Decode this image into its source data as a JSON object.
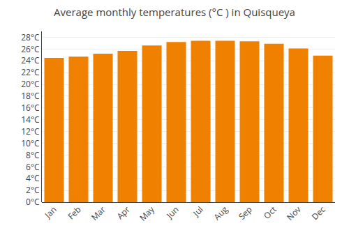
{
  "chart_data": {
    "type": "bar",
    "title": "Average monthly temperatures (°C ) in Quisqueya",
    "categories": [
      "Jan",
      "Feb",
      "Mar",
      "Apr",
      "May",
      "Jun",
      "Jul",
      "Aug",
      "Sep",
      "Oct",
      "Nov",
      "Dec"
    ],
    "values": [
      24.5,
      24.7,
      25.2,
      25.7,
      26.6,
      27.2,
      27.4,
      27.4,
      27.3,
      26.9,
      26.1,
      24.9
    ],
    "color": "#F08000",
    "ylim": [
      0,
      29
    ],
    "yticks": [
      {
        "value": 0,
        "label": "0°C"
      },
      {
        "value": 2,
        "label": "2°C"
      },
      {
        "value": 4,
        "label": "4°C"
      },
      {
        "value": 6,
        "label": "6°C"
      },
      {
        "value": 8,
        "label": "8°C"
      },
      {
        "value": 10,
        "label": "10°C"
      },
      {
        "value": 12,
        "label": "12°C"
      },
      {
        "value": 14,
        "label": "14°C"
      },
      {
        "value": 16,
        "label": "16°C"
      },
      {
        "value": 18,
        "label": "18°C"
      },
      {
        "value": 20,
        "label": "20°C"
      },
      {
        "value": 22,
        "label": "22°C"
      },
      {
        "value": 24,
        "label": "24°C"
      },
      {
        "value": 26,
        "label": "26°C"
      },
      {
        "value": 28,
        "label": "28°C"
      }
    ],
    "grid": true
  }
}
